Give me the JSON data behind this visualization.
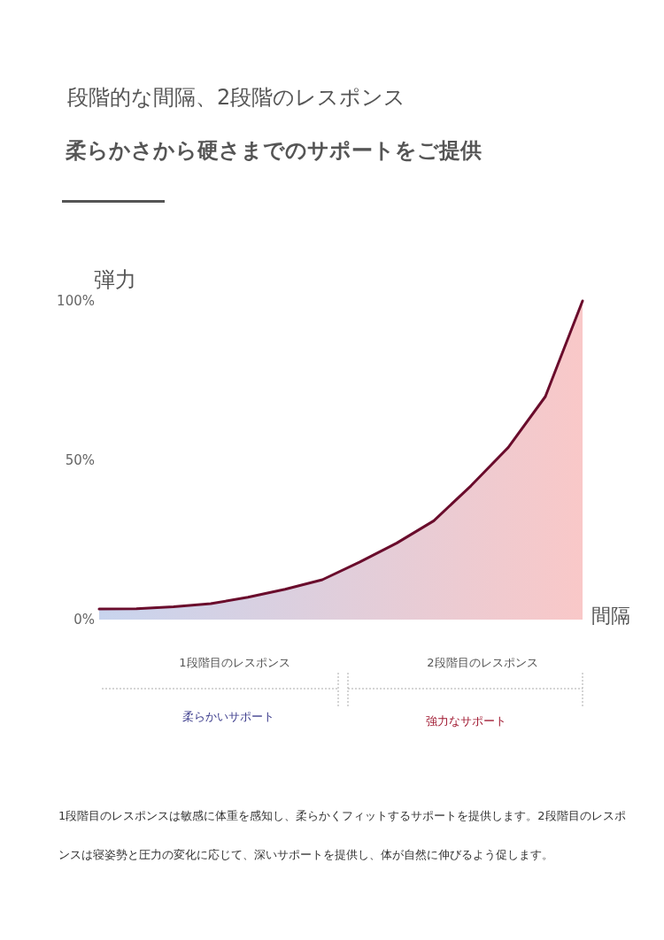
{
  "chart_data": {
    "type": "area",
    "title": "段階的な間隔、2段階のレスポンス",
    "subtitle": "柔らかさから硬さまでのサポートをご提供",
    "ylabel": "弾力",
    "xlabel": "間隔",
    "categories": [
      null,
      null,
      null,
      null,
      null,
      null,
      null,
      null,
      null,
      null,
      null,
      null,
      null,
      null
    ],
    "series": [
      {
        "color": "#6a0c2c",
        "values": [
          3.3,
          3.4,
          4,
          5,
          7,
          9.5,
          12.5,
          18,
          24,
          31,
          42,
          54,
          70,
          100
        ]
      }
    ],
    "ylim": [
      0,
      100
    ],
    "yticks": [
      {
        "value": 0,
        "label": "0%"
      },
      {
        "value": 50,
        "label": "50%"
      },
      {
        "value": 100,
        "label": "100%"
      }
    ],
    "annotations": [
      "1段階目のレスポンス",
      "2段階目のレスポンス",
      "柔らかいサポート",
      "強力なサポート",
      "1段階目のレスポンスは敏感に体重を感知し、柔らかくフィットするサポートを提供します。2段階目のレスポンスは寝姿勢と圧力の変化に応じて、深いサポートを提供し、体が自然に伸びるよう促します。"
    ]
  }
}
